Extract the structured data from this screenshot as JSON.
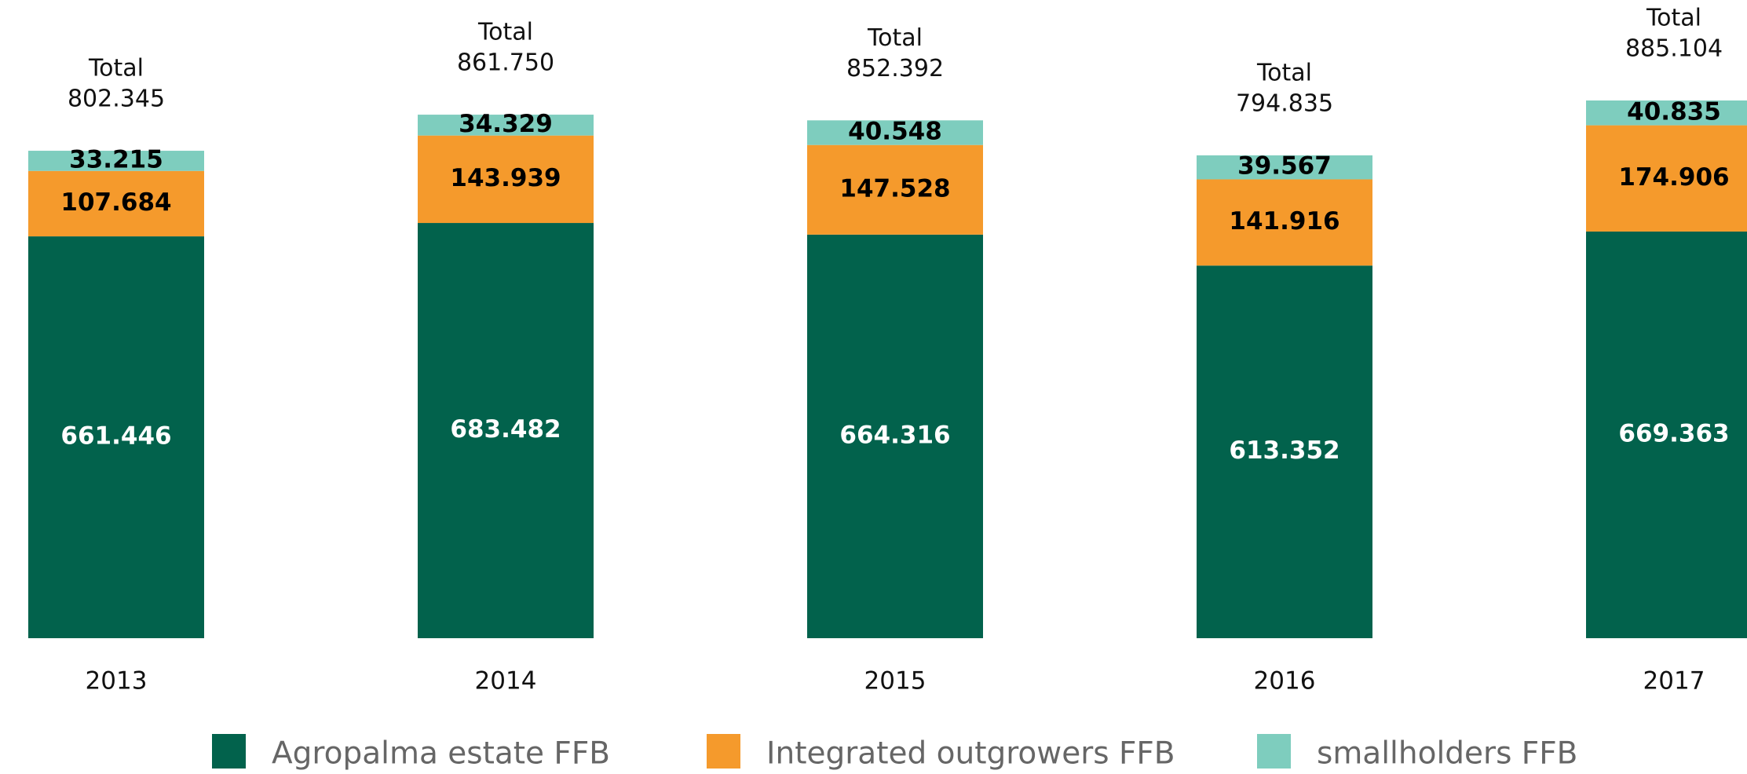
{
  "chart_data": {
    "type": "bar",
    "stacked": true,
    "categories": [
      "2013",
      "2014",
      "2015",
      "2016",
      "2017"
    ],
    "series": [
      {
        "name": "Agropalma estate FFB",
        "color": "#02624c",
        "label_color": "#ffffff",
        "values": [
          661.446,
          683.482,
          664.316,
          613.352,
          669.363
        ]
      },
      {
        "name": "Integrated outgrowers FFB",
        "color": "#f59a2c",
        "label_color": "#000000",
        "values": [
          107.684,
          143.939,
          147.528,
          141.916,
          174.906
        ]
      },
      {
        "name": "smallholders FFB",
        "color": "#7ecdbe",
        "label_color": "#000000",
        "values": [
          33.215,
          34.329,
          40.548,
          39.567,
          40.835
        ]
      }
    ],
    "total_title": "Total",
    "totals": [
      802.345,
      861.75,
      852.392,
      794.835,
      885.104
    ],
    "total_labels": [
      "802.345",
      "861.750",
      "852.392",
      "794.835",
      "885.104"
    ],
    "legend": "bottom"
  }
}
